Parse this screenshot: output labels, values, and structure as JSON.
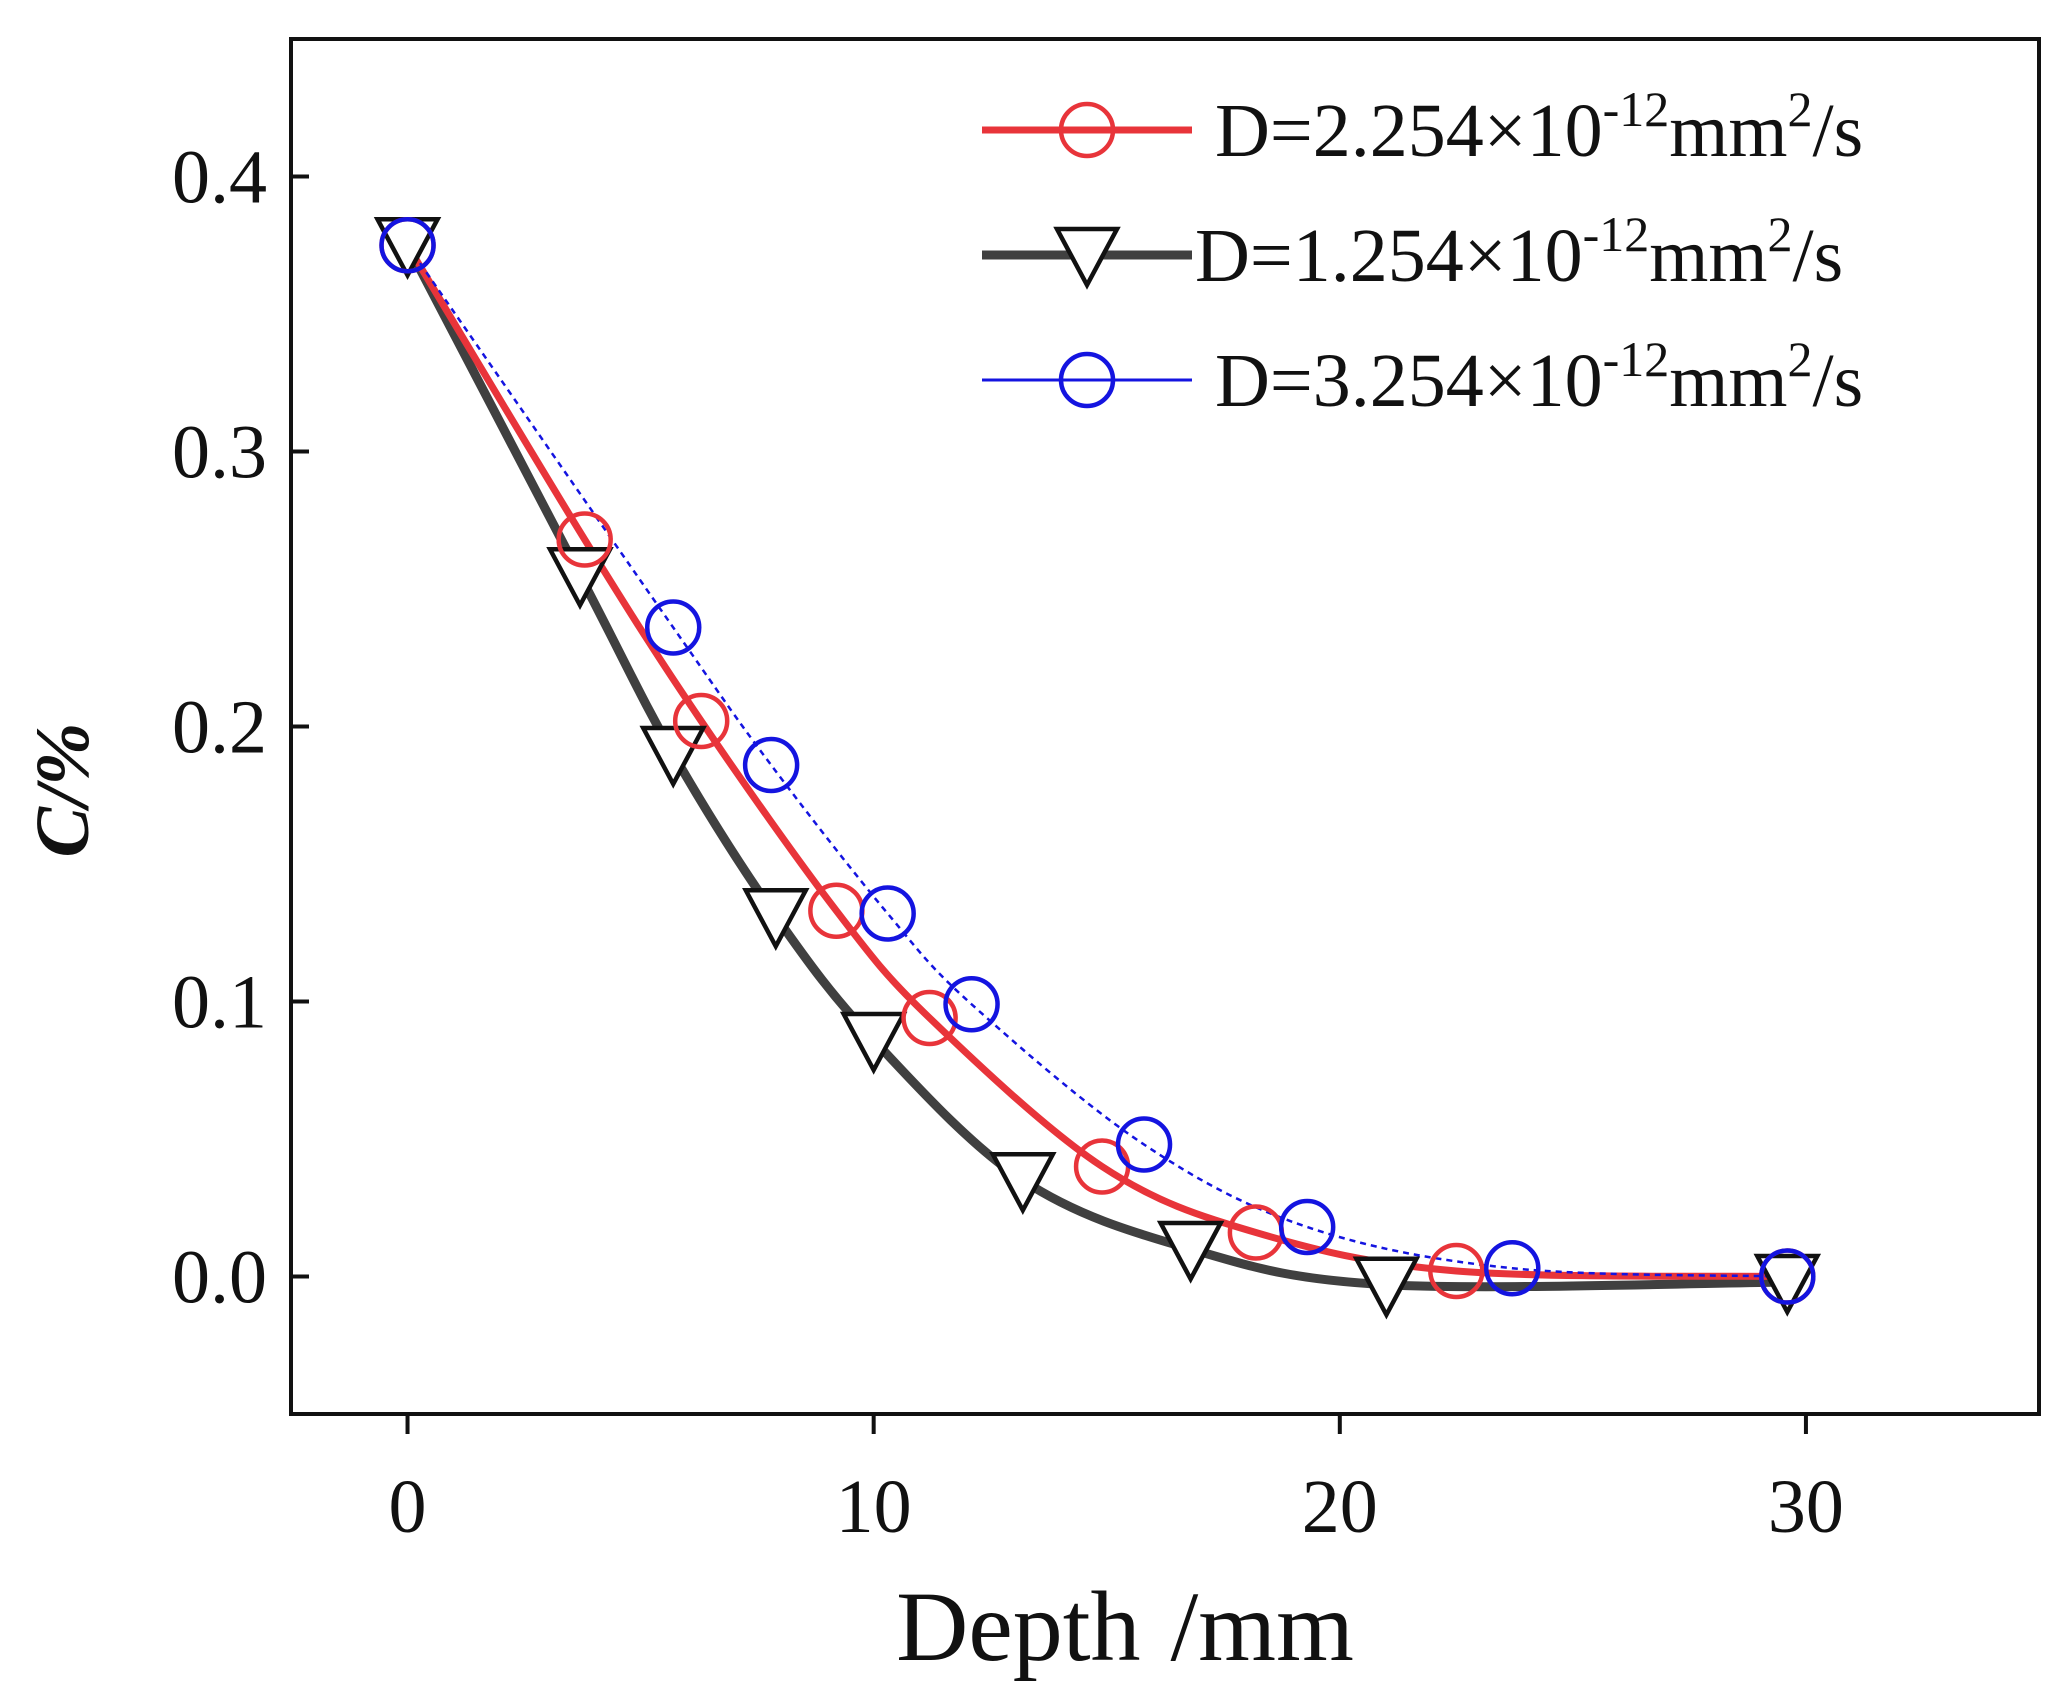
{
  "chart_data": {
    "type": "line",
    "title": "",
    "xlabel": "Depth",
    "xlabel_unit": "/mm",
    "ylabel": "C/%",
    "xlim": [
      -2.5,
      35
    ],
    "ylim": [
      -0.05,
      0.45
    ],
    "xticks": [
      0,
      10,
      20,
      30
    ],
    "xtick_labels": [
      "0",
      "10",
      "20",
      "30"
    ],
    "yticks": [
      0.0,
      0.1,
      0.2,
      0.3,
      0.4
    ],
    "ytick_labels": [
      "0.0",
      "0.1",
      "0.2",
      "0.3",
      "0.4"
    ],
    "grid": false,
    "legend_position": "top-right",
    "series": [
      {
        "name": "D=2.254×10-12mm2/s",
        "legend_main": "D=2.254×10",
        "legend_exp": "-12",
        "legend_unit": "mm",
        "legend_unit_exp": "2",
        "legend_tail": "/s",
        "color": "#e8343a",
        "marker": "circle",
        "stroke_width": 7,
        "dash": "",
        "x": [
          0,
          3.8,
          6.3,
          9.2,
          11.2,
          14.9,
          18.2,
          22.5,
          29.6
        ],
        "y": [
          0.375,
          0.268,
          0.202,
          0.133,
          0.094,
          0.04,
          0.016,
          0.002,
          0.0
        ]
      },
      {
        "name": "D=1.254×10-12mm2/s",
        "legend_main": "D=1.254×10",
        "legend_exp": "-12",
        "legend_unit": "mm",
        "legend_unit_exp": "2",
        "legend_tail": "/s",
        "color": "#404040",
        "marker": "triangle-down",
        "stroke_width": 9,
        "dash": "",
        "x": [
          0,
          3.7,
          5.7,
          7.9,
          10.0,
          13.2,
          16.8,
          21.0,
          29.6
        ],
        "y": [
          0.375,
          0.255,
          0.19,
          0.131,
          0.086,
          0.035,
          0.01,
          -0.003,
          -0.002
        ]
      },
      {
        "name": "D=3.254×10-12mm2/s",
        "legend_main": "D=3.254×10",
        "legend_exp": "-12",
        "legend_unit": "mm",
        "legend_unit_exp": "2",
        "legend_tail": "/s",
        "color": "#1414e0",
        "marker": "circle",
        "stroke_width": 2.5,
        "dash": "6,5",
        "x": [
          0,
          5.7,
          7.8,
          10.3,
          12.1,
          15.8,
          19.3,
          23.7,
          29.6
        ],
        "y": [
          0.375,
          0.236,
          0.186,
          0.132,
          0.099,
          0.048,
          0.018,
          0.003,
          0.0
        ]
      }
    ]
  }
}
